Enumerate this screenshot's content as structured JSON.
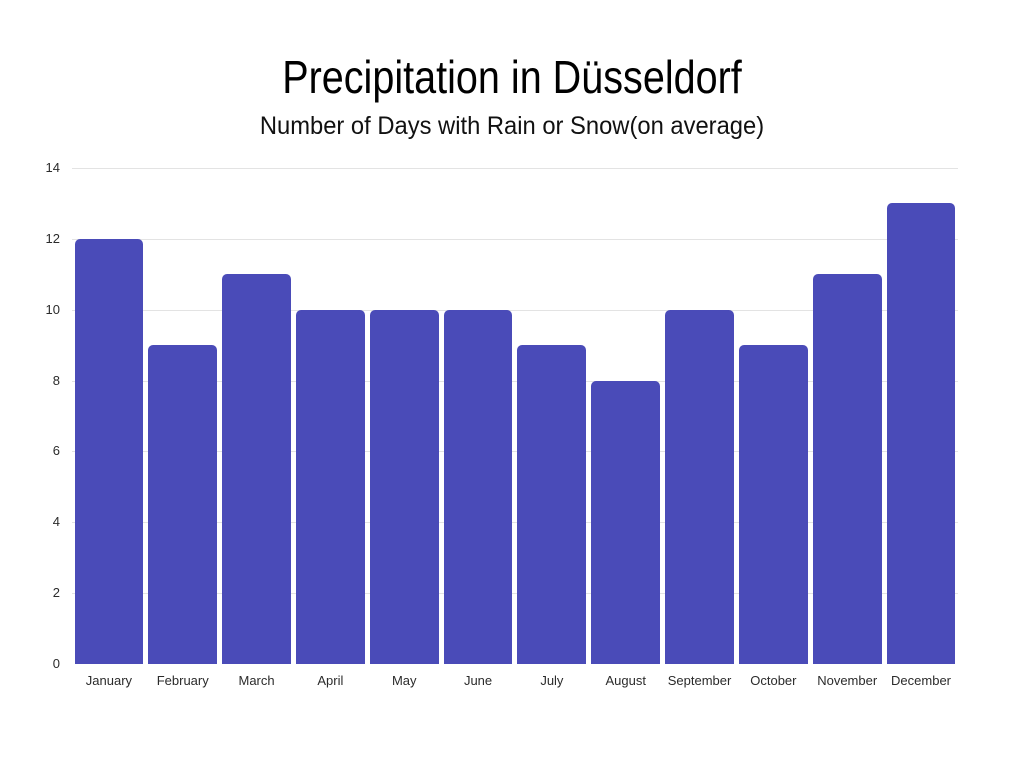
{
  "title": "Precipitation in Düsseldorf",
  "subtitle": "Number of Days with Rain or Snow(on average)",
  "chart_data": {
    "type": "bar",
    "title": "Precipitation in Düsseldorf",
    "subtitle": "Number of Days with Rain or Snow(on average)",
    "categories": [
      "January",
      "February",
      "March",
      "April",
      "May",
      "June",
      "July",
      "August",
      "September",
      "October",
      "November",
      "December"
    ],
    "values": [
      12,
      9,
      11,
      10,
      10,
      10,
      9,
      8,
      10,
      9,
      11,
      13
    ],
    "xlabel": "",
    "ylabel": "",
    "ylim": [
      0,
      14
    ],
    "yticks": [
      0,
      2,
      4,
      6,
      8,
      10,
      12,
      14
    ],
    "grid": "horizontal",
    "legend_position": "none",
    "colors": {
      "bar": "#4a4bb8",
      "gridline": "#e3e3e3",
      "tick_label": "#2b2b2b",
      "title": "#000000",
      "background": "#ffffff"
    }
  }
}
